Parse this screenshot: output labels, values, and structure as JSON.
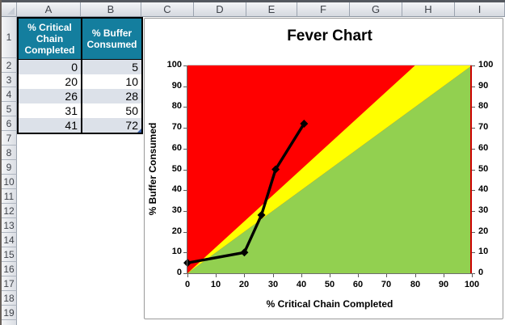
{
  "sheet": {
    "column_headers": [
      "A",
      "B",
      "C",
      "D",
      "E",
      "F",
      "G",
      "H",
      "I"
    ],
    "row_headers": [
      "1",
      "2",
      "3",
      "4",
      "5",
      "6",
      "7",
      "8",
      "9",
      "10",
      "11",
      "12",
      "13",
      "14",
      "15",
      "16",
      "17",
      "18",
      "19"
    ],
    "table": {
      "headers": [
        "% Critical Chain Completed",
        "% Buffer Consumed"
      ],
      "rows": [
        [
          0,
          5
        ],
        [
          20,
          10
        ],
        [
          26,
          28
        ],
        [
          31,
          50
        ],
        [
          41,
          72
        ]
      ],
      "header_bg": "#147E9E",
      "band_color": "#DCE1E9"
    }
  },
  "chart_data": {
    "type": "line",
    "title": "Fever Chart",
    "xlabel": "% Critical Chain Completed",
    "ylabel": "% Buffer Consumed",
    "xlim": [
      0,
      100
    ],
    "ylim": [
      0,
      100
    ],
    "x_ticks": [
      0,
      10,
      20,
      30,
      40,
      50,
      60,
      70,
      80,
      90,
      100
    ],
    "y_ticks_left": [
      0,
      10,
      20,
      30,
      40,
      50,
      60,
      70,
      80,
      90,
      100
    ],
    "y_ticks_right": [
      0,
      10,
      20,
      30,
      40,
      50,
      60,
      70,
      80,
      90,
      100
    ],
    "grid": false,
    "legend": "none",
    "series": [
      {
        "name": "% Buffer Consumed",
        "x": [
          0,
          20,
          26,
          31,
          41
        ],
        "y": [
          5,
          10,
          28,
          50,
          72
        ],
        "color": "#000000",
        "marker": "diamond"
      }
    ],
    "zones": [
      {
        "name": "red-zone",
        "color": "#FF0000",
        "polygon": [
          [
            0,
            0
          ],
          [
            0,
            100
          ],
          [
            100,
            100
          ],
          [
            100,
            0
          ]
        ]
      },
      {
        "name": "yellow-zone",
        "color": "#FFFF00",
        "polygon": [
          [
            0,
            0
          ],
          [
            80,
            100
          ],
          [
            100,
            100
          ]
        ]
      },
      {
        "name": "green-zone",
        "color": "#92D050",
        "polygon": [
          [
            0,
            0
          ],
          [
            100,
            0
          ],
          [
            100,
            100
          ]
        ]
      }
    ],
    "secondary_axis_color": "#CC0000"
  }
}
